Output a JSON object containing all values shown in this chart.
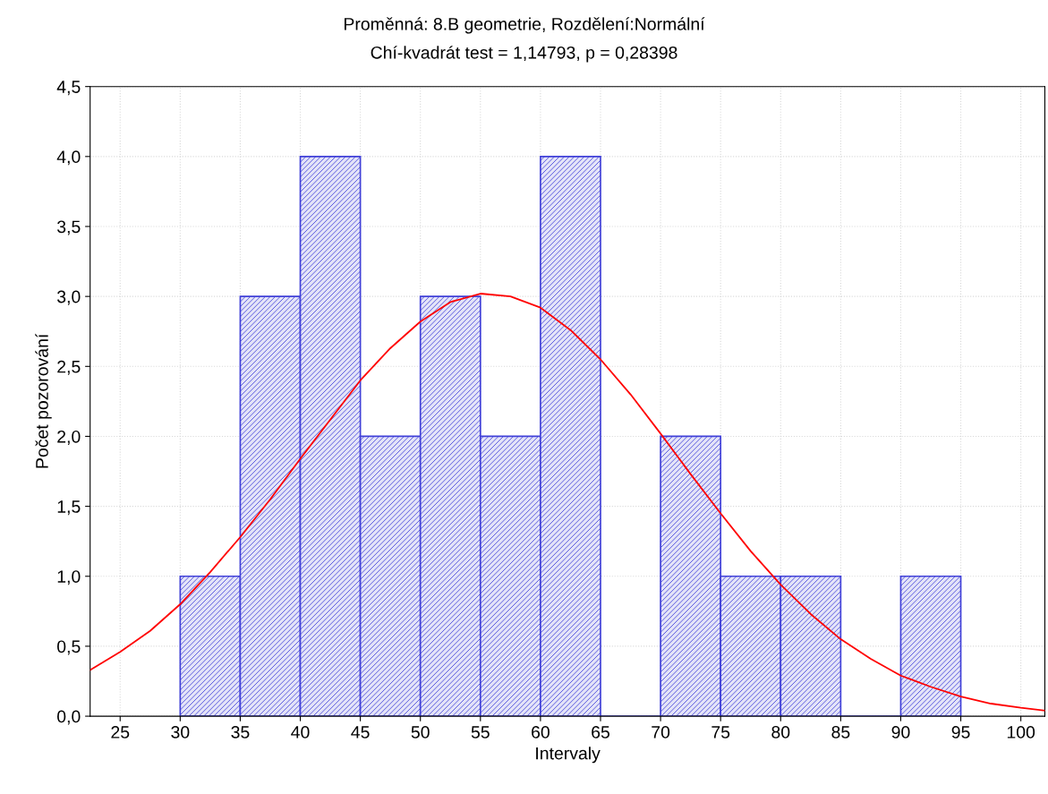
{
  "chart_data": {
    "type": "histogram",
    "title": "Proměnná: 8.B geometrie, Rozdělení:Normální",
    "subtitle": "Chí-kvadrát test = 1,14793, p = 0,28398",
    "xlabel": "Intervaly",
    "ylabel": "Počet pozorování",
    "bins": [
      30,
      35,
      40,
      45,
      50,
      55,
      60,
      65,
      70,
      75,
      80,
      85,
      90,
      95
    ],
    "values": [
      1,
      3,
      4,
      2,
      3,
      2,
      4,
      0,
      2,
      1,
      1,
      0,
      1
    ],
    "color": "#4040d8",
    "series": [
      {
        "type": "line",
        "color": "#ff0000",
        "x": [
          22.5,
          25,
          27.5,
          30,
          32.5,
          35,
          37.5,
          40,
          42.5,
          45,
          47.5,
          50,
          52.5,
          55,
          57.5,
          60,
          62.5,
          65,
          67.5,
          70,
          72.5,
          75,
          77.5,
          80,
          82.5,
          85,
          87.5,
          90,
          92.5,
          95,
          97.5,
          100,
          102
        ],
        "values": [
          0.33,
          0.46,
          0.61,
          0.8,
          1.03,
          1.28,
          1.55,
          1.84,
          2.12,
          2.4,
          2.63,
          2.82,
          2.96,
          3.02,
          3.0,
          2.92,
          2.76,
          2.55,
          2.3,
          2.02,
          1.73,
          1.45,
          1.18,
          0.94,
          0.73,
          0.55,
          0.41,
          0.29,
          0.21,
          0.14,
          0.09,
          0.06,
          0.04
        ]
      }
    ],
    "xlim": [
      22.5,
      102
    ],
    "xticks": [
      25,
      30,
      35,
      40,
      45,
      50,
      55,
      60,
      65,
      70,
      75,
      80,
      85,
      90,
      95,
      100
    ],
    "ylim": [
      0,
      4.5
    ],
    "yticks": [
      {
        "value": 0,
        "label": "0,0"
      },
      {
        "value": 0.5,
        "label": "0,5"
      },
      {
        "value": 1,
        "label": "1,0"
      },
      {
        "value": 1.5,
        "label": "1,5"
      },
      {
        "value": 2,
        "label": "2,0"
      },
      {
        "value": 2.5,
        "label": "2,5"
      },
      {
        "value": 3,
        "label": "3,0"
      },
      {
        "value": 3.5,
        "label": "3,5"
      },
      {
        "value": 4,
        "label": "4,0"
      },
      {
        "value": 4.5,
        "label": "4,5"
      }
    ],
    "grid": true
  }
}
